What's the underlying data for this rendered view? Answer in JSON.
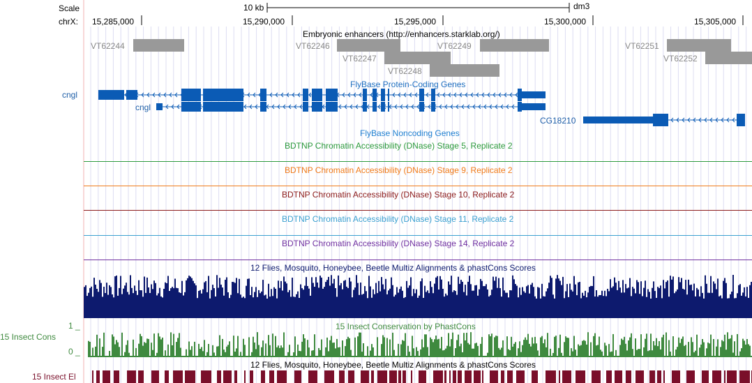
{
  "ruler": {
    "scale_label": "Scale",
    "chrom_label": "chrX:",
    "scale_value": "10 kb",
    "assembly": "dm3",
    "ticks": [
      "15,285,000",
      "15,290,000",
      "15,295,000",
      "15,300,000",
      "15,305,000"
    ]
  },
  "tracks": {
    "enhancers": {
      "title": "Embryonic enhancers (http://enhancers.starklab.org/)",
      "items": [
        "VT62244",
        "VT62246",
        "VT62247",
        "VT62248",
        "VT62249",
        "VT62251",
        "VT62252"
      ]
    },
    "flybase_coding": {
      "title": "FlyBase Protein-Coding Genes",
      "genes": [
        "cngl",
        "cngl",
        "CG18210"
      ]
    },
    "flybase_noncoding": {
      "title": "FlyBase Noncoding Genes"
    },
    "dnase": [
      {
        "title": "BDTNP Chromatin Accessibility (DNase) Stage 5, Replicate 2",
        "color": "#2c9a3c"
      },
      {
        "title": "BDTNP Chromatin Accessibility (DNase) Stage 9, Replicate 2",
        "color": "#f07a18"
      },
      {
        "title": "BDTNP Chromatin Accessibility (DNase) Stage 10, Replicate 2",
        "color": "#8b1a1a"
      },
      {
        "title": "BDTNP Chromatin Accessibility (DNase) Stage 11, Replicate 2",
        "color": "#3aa0d0"
      },
      {
        "title": "BDTNP Chromatin Accessibility (DNase) Stage 14, Replicate 2",
        "color": "#7030a0"
      }
    ],
    "multiz": {
      "title": "12 Flies, Mosquito, Honeybee, Beetle Multiz Alignments & phastCons Scores",
      "color": "#0d1a6e"
    },
    "phastcons": {
      "title": "15 Insect Conservation by PhastCons",
      "side_label": "15 Insect Cons",
      "scale_max": "1 _",
      "scale_min": "0 _",
      "color": "#3f8a3f"
    },
    "elements": {
      "title": "12 Flies, Mosquito, Honeybee, Beetle Multiz Alignments & phastCons Scores",
      "side_label": "15 Insect El",
      "color": "#7a0f2a"
    }
  },
  "colors": {
    "gene": "#0b5bb5",
    "gene_label": "#1f5fa8",
    "grid": "#d8d8f0",
    "left_border": "#f2b0b0"
  }
}
